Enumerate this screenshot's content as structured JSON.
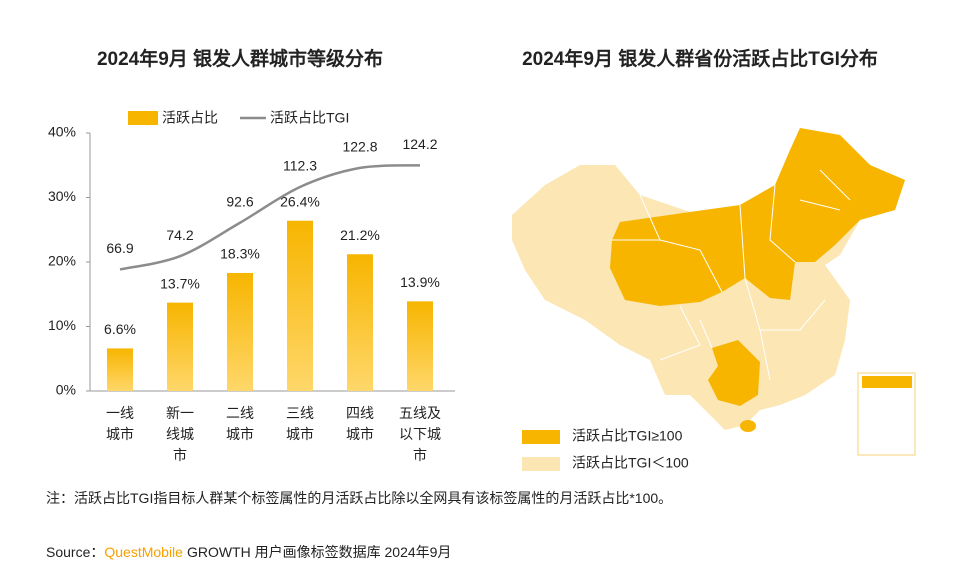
{
  "chart_data": [
    {
      "type": "bar-line",
      "title": "2024年9月 银发人群城市等级分布",
      "categories": [
        "一线城市",
        "新一线城市",
        "二线城市",
        "三线城市",
        "四线城市",
        "五线及以下城市"
      ],
      "series": [
        {
          "name": "活跃占比",
          "type": "bar",
          "color": "#f7b500",
          "values": [
            6.6,
            13.7,
            18.3,
            26.4,
            21.2,
            13.9
          ],
          "value_labels": [
            "6.6%",
            "13.7%",
            "18.3%",
            "26.4%",
            "21.2%",
            "13.9%"
          ]
        },
        {
          "name": "活跃占比TGI",
          "type": "line",
          "axis": "y2",
          "color": "#8c8c8c",
          "values": [
            66.9,
            74.2,
            92.6,
            112.3,
            122.8,
            124.2
          ]
        }
      ],
      "ylim": [
        0,
        40
      ],
      "yticks": [
        {
          "value": 0,
          "label": "0%"
        },
        {
          "value": 10,
          "label": "10%"
        },
        {
          "value": 20,
          "label": "20%"
        },
        {
          "value": 30,
          "label": "30%"
        },
        {
          "value": 40,
          "label": "40%"
        }
      ],
      "y2lim": [
        0,
        142
      ]
    },
    {
      "type": "map",
      "title": "2024年9月 银发人群省份活跃占比TGI分布",
      "legend": [
        {
          "name": "活跃占比TGI≥100",
          "color": "#f7b500"
        },
        {
          "name": "活跃占比TGI＜100",
          "color": "#fbe6b4"
        }
      ]
    }
  ],
  "note": "注：活跃占比TGI指目标人群某个标签属性的月活跃占比除以全网具有该标签属性的月活跃占比*100。",
  "source": {
    "label": "Source：",
    "brand": "QuestMobile",
    "text": "GROWTH 用户画像标签数据库 2024年9月"
  }
}
